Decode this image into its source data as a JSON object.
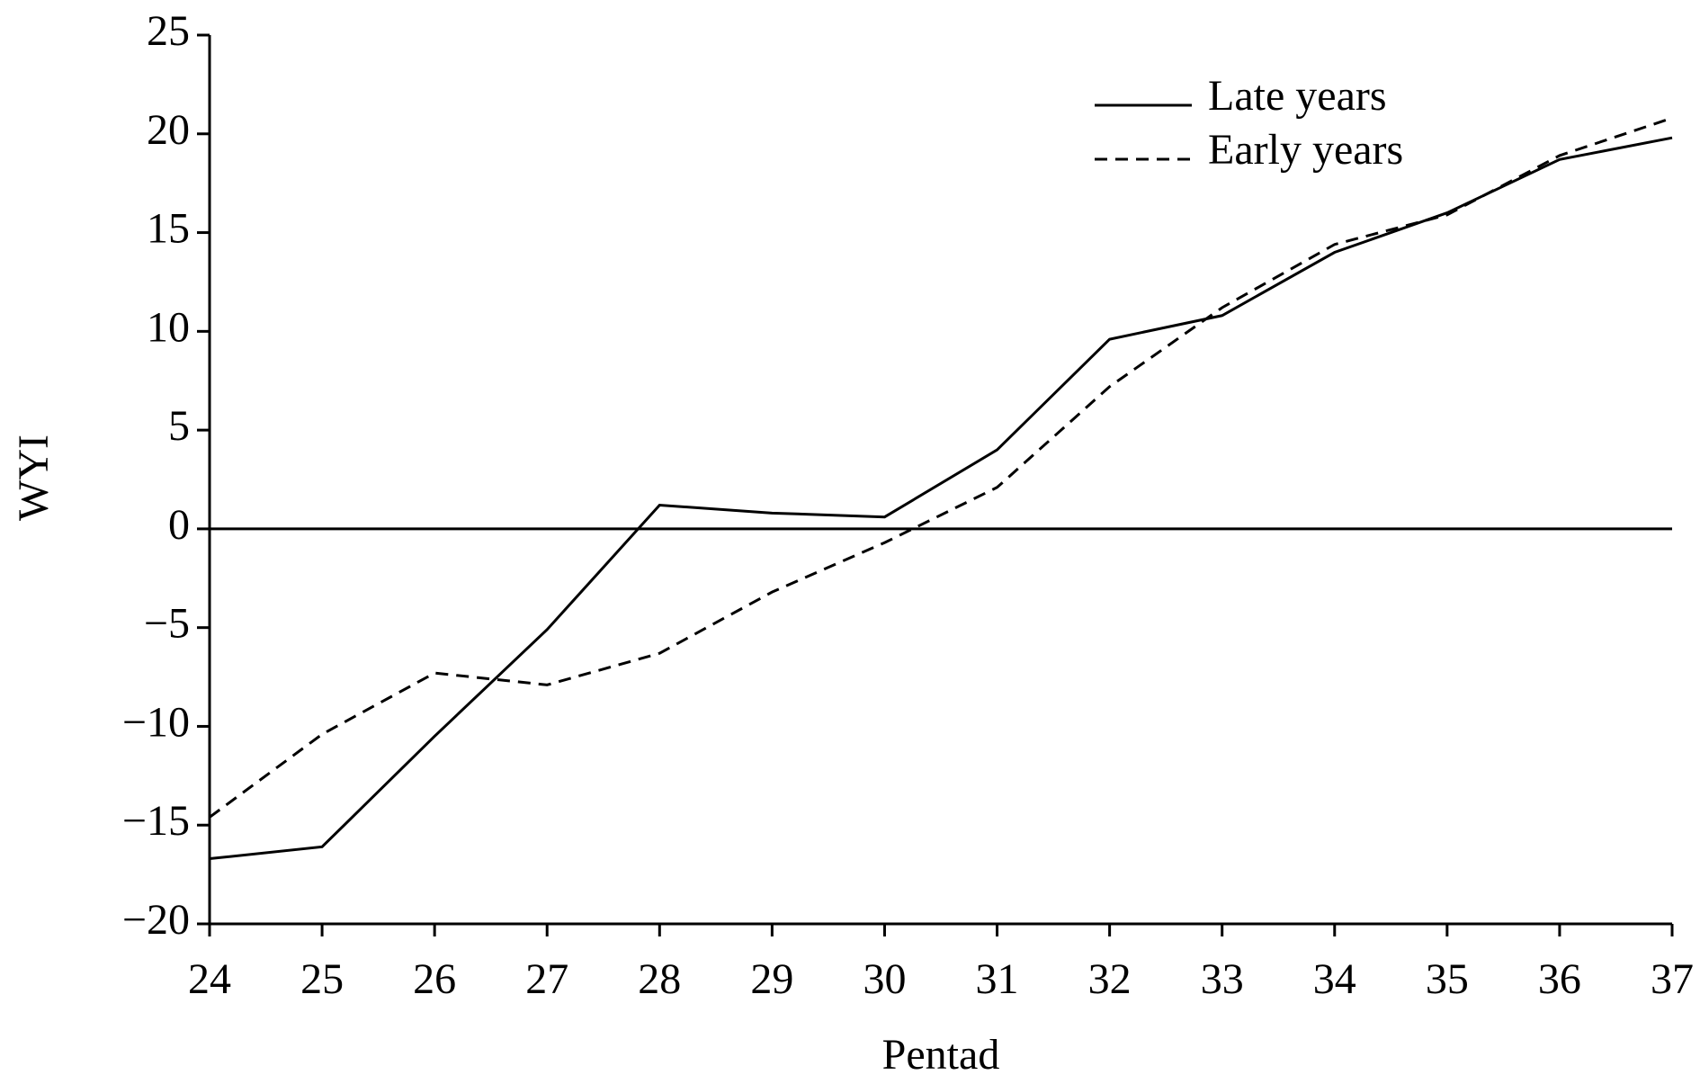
{
  "chart_data": {
    "type": "line",
    "x_label": "Pentad",
    "y_label": "WYI",
    "x": [
      24,
      25,
      26,
      27,
      28,
      29,
      30,
      31,
      32,
      33,
      34,
      35,
      36,
      37
    ],
    "series": [
      {
        "name": "Late years",
        "color": "#000000",
        "linestyle": "solid",
        "values": [
          -16.7,
          -16.1,
          -10.5,
          -5.1,
          1.2,
          0.8,
          0.6,
          4.0,
          9.6,
          10.8,
          14.0,
          16.0,
          18.7,
          19.8
        ]
      },
      {
        "name": "Early years",
        "color": "#000000",
        "linestyle": "dashed",
        "values": [
          -14.6,
          -10.4,
          -7.3,
          -7.9,
          -6.3,
          -3.2,
          -0.7,
          2.1,
          7.2,
          11.2,
          14.4,
          15.9,
          18.9,
          20.8
        ]
      }
    ],
    "xlim": [
      24,
      37
    ],
    "xticks": [
      24,
      25,
      26,
      27,
      28,
      29,
      30,
      31,
      32,
      33,
      34,
      35,
      36,
      37
    ],
    "ylim": [
      -20,
      25
    ],
    "yticks": [
      {
        "value": -20,
        "label": "−20"
      },
      {
        "value": -15,
        "label": "−15"
      },
      {
        "value": -10,
        "label": "−10"
      },
      {
        "value": -5,
        "label": "−5"
      },
      0,
      5,
      10,
      15,
      20,
      25
    ],
    "zero_line": true,
    "legend": "upper right"
  }
}
